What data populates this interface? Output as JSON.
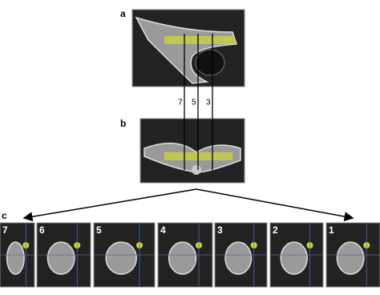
{
  "panels": {
    "a": "a",
    "b": "b",
    "c": "c"
  },
  "line_labels": [
    "7",
    "5",
    "3"
  ],
  "slices": [
    "7",
    "6",
    "5",
    "4",
    "3",
    "2",
    "1"
  ]
}
